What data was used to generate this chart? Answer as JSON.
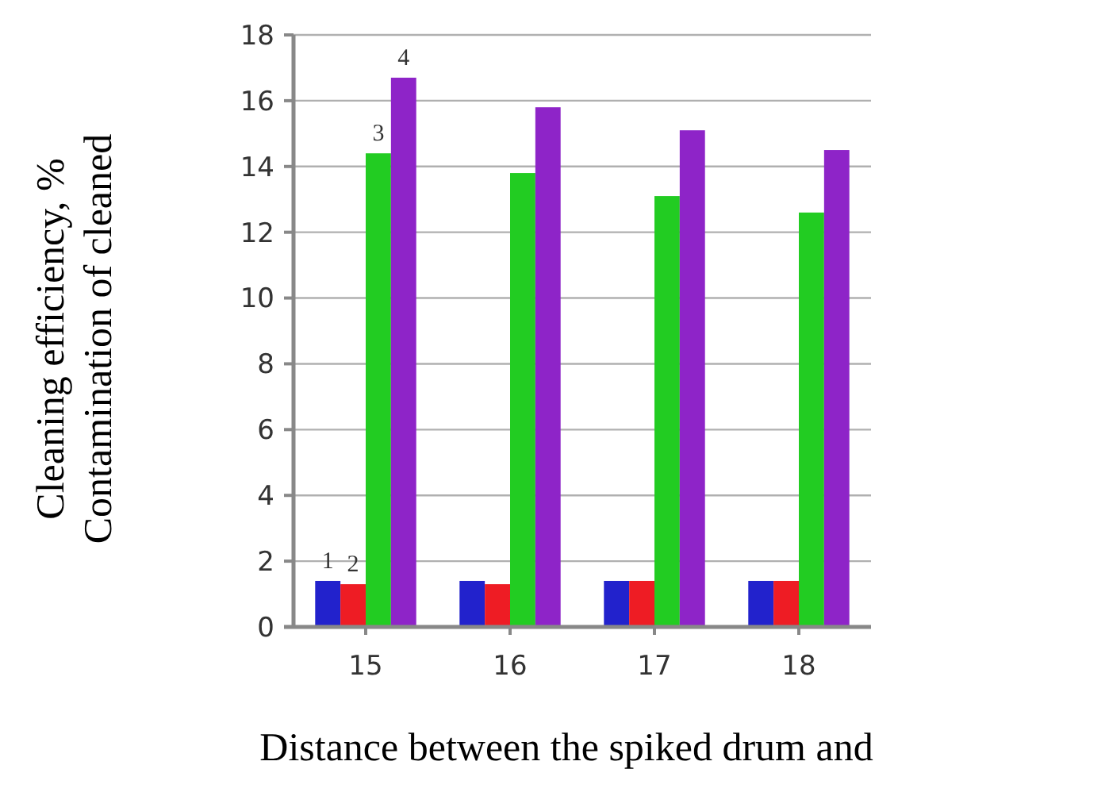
{
  "chart_data": {
    "type": "bar",
    "xlabel": "Distance between the spiked drum and",
    "ylabel": "Cleaning efficiency, %\nContamination of cleaned",
    "categories": [
      "15",
      "16",
      "17",
      "18"
    ],
    "series": [
      {
        "name": "1",
        "color": "#2222cc",
        "values": [
          1.4,
          1.4,
          1.4,
          1.4
        ]
      },
      {
        "name": "2",
        "color": "#ee1c24",
        "values": [
          1.3,
          1.3,
          1.4,
          1.4
        ]
      },
      {
        "name": "3",
        "color": "#22cc22",
        "values": [
          14.4,
          13.8,
          13.1,
          12.6
        ]
      },
      {
        "name": "4",
        "color": "#8e24c8",
        "values": [
          16.7,
          15.8,
          15.1,
          14.5
        ]
      }
    ],
    "ylim": [
      0,
      18
    ],
    "yticks": [
      0,
      2,
      4,
      6,
      8,
      10,
      12,
      14,
      16,
      18
    ],
    "grid": "y"
  }
}
